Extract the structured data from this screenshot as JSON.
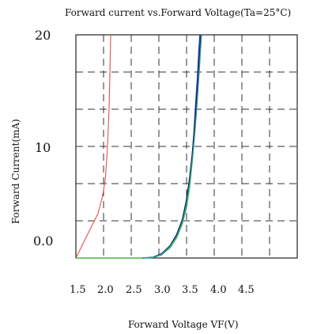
{
  "chart_data": {
    "type": "line",
    "title": "Forward current vs.Forward Voltage(Ta=25°C)",
    "xlabel": "Forward Voltage VF(V)",
    "ylabel": "Forward Current(mA)",
    "x_tick_labels": [
      "1.5",
      "2.0",
      "2.5",
      "3.0",
      "3.5",
      "4.0",
      "4.5"
    ],
    "y_tick_labels": [
      "0.0",
      "10",
      "20"
    ],
    "xlim": [
      1.5,
      5.5
    ],
    "ylim": [
      0,
      20
    ],
    "grid": true,
    "colors": {
      "red": "#e05050",
      "green": "#40c040",
      "blue": "#2030c0",
      "dark": "#102040",
      "teal": "#30a0a0",
      "grid": "#333333",
      "frame": "#222222"
    },
    "series": [
      {
        "color": "red",
        "x": [
          1.5,
          1.6,
          1.7,
          1.8,
          1.9,
          1.98,
          2.03,
          2.06,
          2.08,
          2.1,
          2.11,
          2.12,
          2.13
        ],
        "y": [
          0,
          1.0,
          2.0,
          3.0,
          4.0,
          5.5,
          7.0,
          9.0,
          11.0,
          13.5,
          15.5,
          18.0,
          20.0
        ]
      },
      {
        "color": "green",
        "x": [
          1.5,
          1.8,
          2.1,
          2.7,
          2.9,
          3.05,
          3.2,
          3.32,
          3.42,
          3.5,
          3.56,
          3.6,
          3.64,
          3.68,
          3.72,
          3.75
        ],
        "y": [
          0,
          0,
          0,
          0,
          0.05,
          0.3,
          0.9,
          1.8,
          3.0,
          4.5,
          6.5,
          8.5,
          11.0,
          14.0,
          17.5,
          20.0
        ]
      },
      {
        "color": "blue",
        "x": [
          2.7,
          2.9,
          3.05,
          3.2,
          3.32,
          3.42,
          3.5,
          3.56,
          3.6,
          3.63,
          3.66,
          3.7,
          3.72,
          3.74
        ],
        "y": [
          0,
          0.05,
          0.3,
          1.0,
          2.0,
          3.3,
          5.0,
          7.0,
          9.0,
          11.0,
          13.5,
          16.5,
          18.5,
          20.0
        ]
      },
      {
        "color": "dark",
        "x": [
          2.7,
          2.9,
          3.05,
          3.2,
          3.32,
          3.42,
          3.49,
          3.55,
          3.6,
          3.64,
          3.68,
          3.72,
          3.76
        ],
        "y": [
          0,
          0.08,
          0.4,
          1.1,
          2.1,
          3.4,
          5.0,
          7.0,
          9.2,
          11.5,
          14.0,
          17.0,
          20.0
        ]
      },
      {
        "color": "teal",
        "x": [
          2.7,
          2.9,
          3.05,
          3.2,
          3.33,
          3.43,
          3.5,
          3.56,
          3.61,
          3.65,
          3.69,
          3.73,
          3.77
        ],
        "y": [
          0,
          0.05,
          0.35,
          1.0,
          2.0,
          3.3,
          4.8,
          6.8,
          9.0,
          11.2,
          13.8,
          16.8,
          20.0
        ]
      }
    ]
  }
}
